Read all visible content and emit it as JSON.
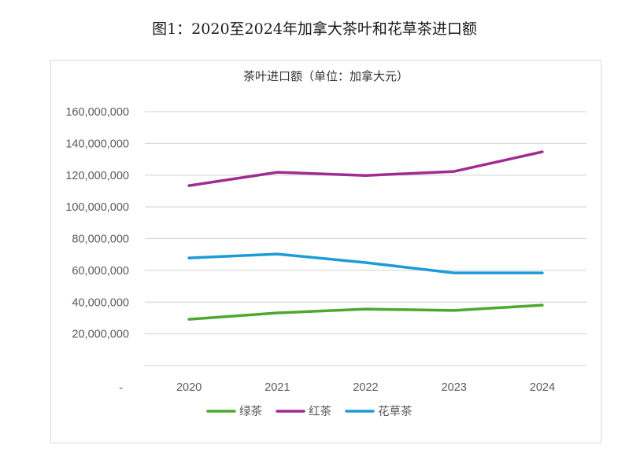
{
  "figure_title": "图1：2020至2024年加拿大茶叶和花草茶进口额",
  "chart_data": {
    "type": "line",
    "title": "茶叶进口额（单位：加拿大元）",
    "xlabel": "",
    "ylabel": "",
    "categories": [
      "2020",
      "2021",
      "2022",
      "2023",
      "2024"
    ],
    "ylim": [
      0,
      160000000
    ],
    "yticks": [
      0,
      20000000,
      40000000,
      60000000,
      80000000,
      100000000,
      120000000,
      140000000,
      160000000
    ],
    "ytick_labels": [
      "-",
      "20,000,000",
      "40,000,000",
      "60,000,000",
      "80,000,000",
      "100,000,000",
      "120,000,000",
      "140,000,000",
      "160,000,000"
    ],
    "grid": true,
    "legend_position": "bottom",
    "series": [
      {
        "name": "绿茶",
        "color": "#4ea72e",
        "values": [
          29200000,
          33200000,
          35600000,
          34700000,
          38100000
        ]
      },
      {
        "name": "红茶",
        "color": "#a02b93",
        "values": [
          113400000,
          121800000,
          119800000,
          122300000,
          134700000
        ]
      },
      {
        "name": "花草茶",
        "color": "#1c9bd8",
        "values": [
          67800000,
          70300000,
          64900000,
          58400000,
          58400000
        ]
      }
    ]
  }
}
